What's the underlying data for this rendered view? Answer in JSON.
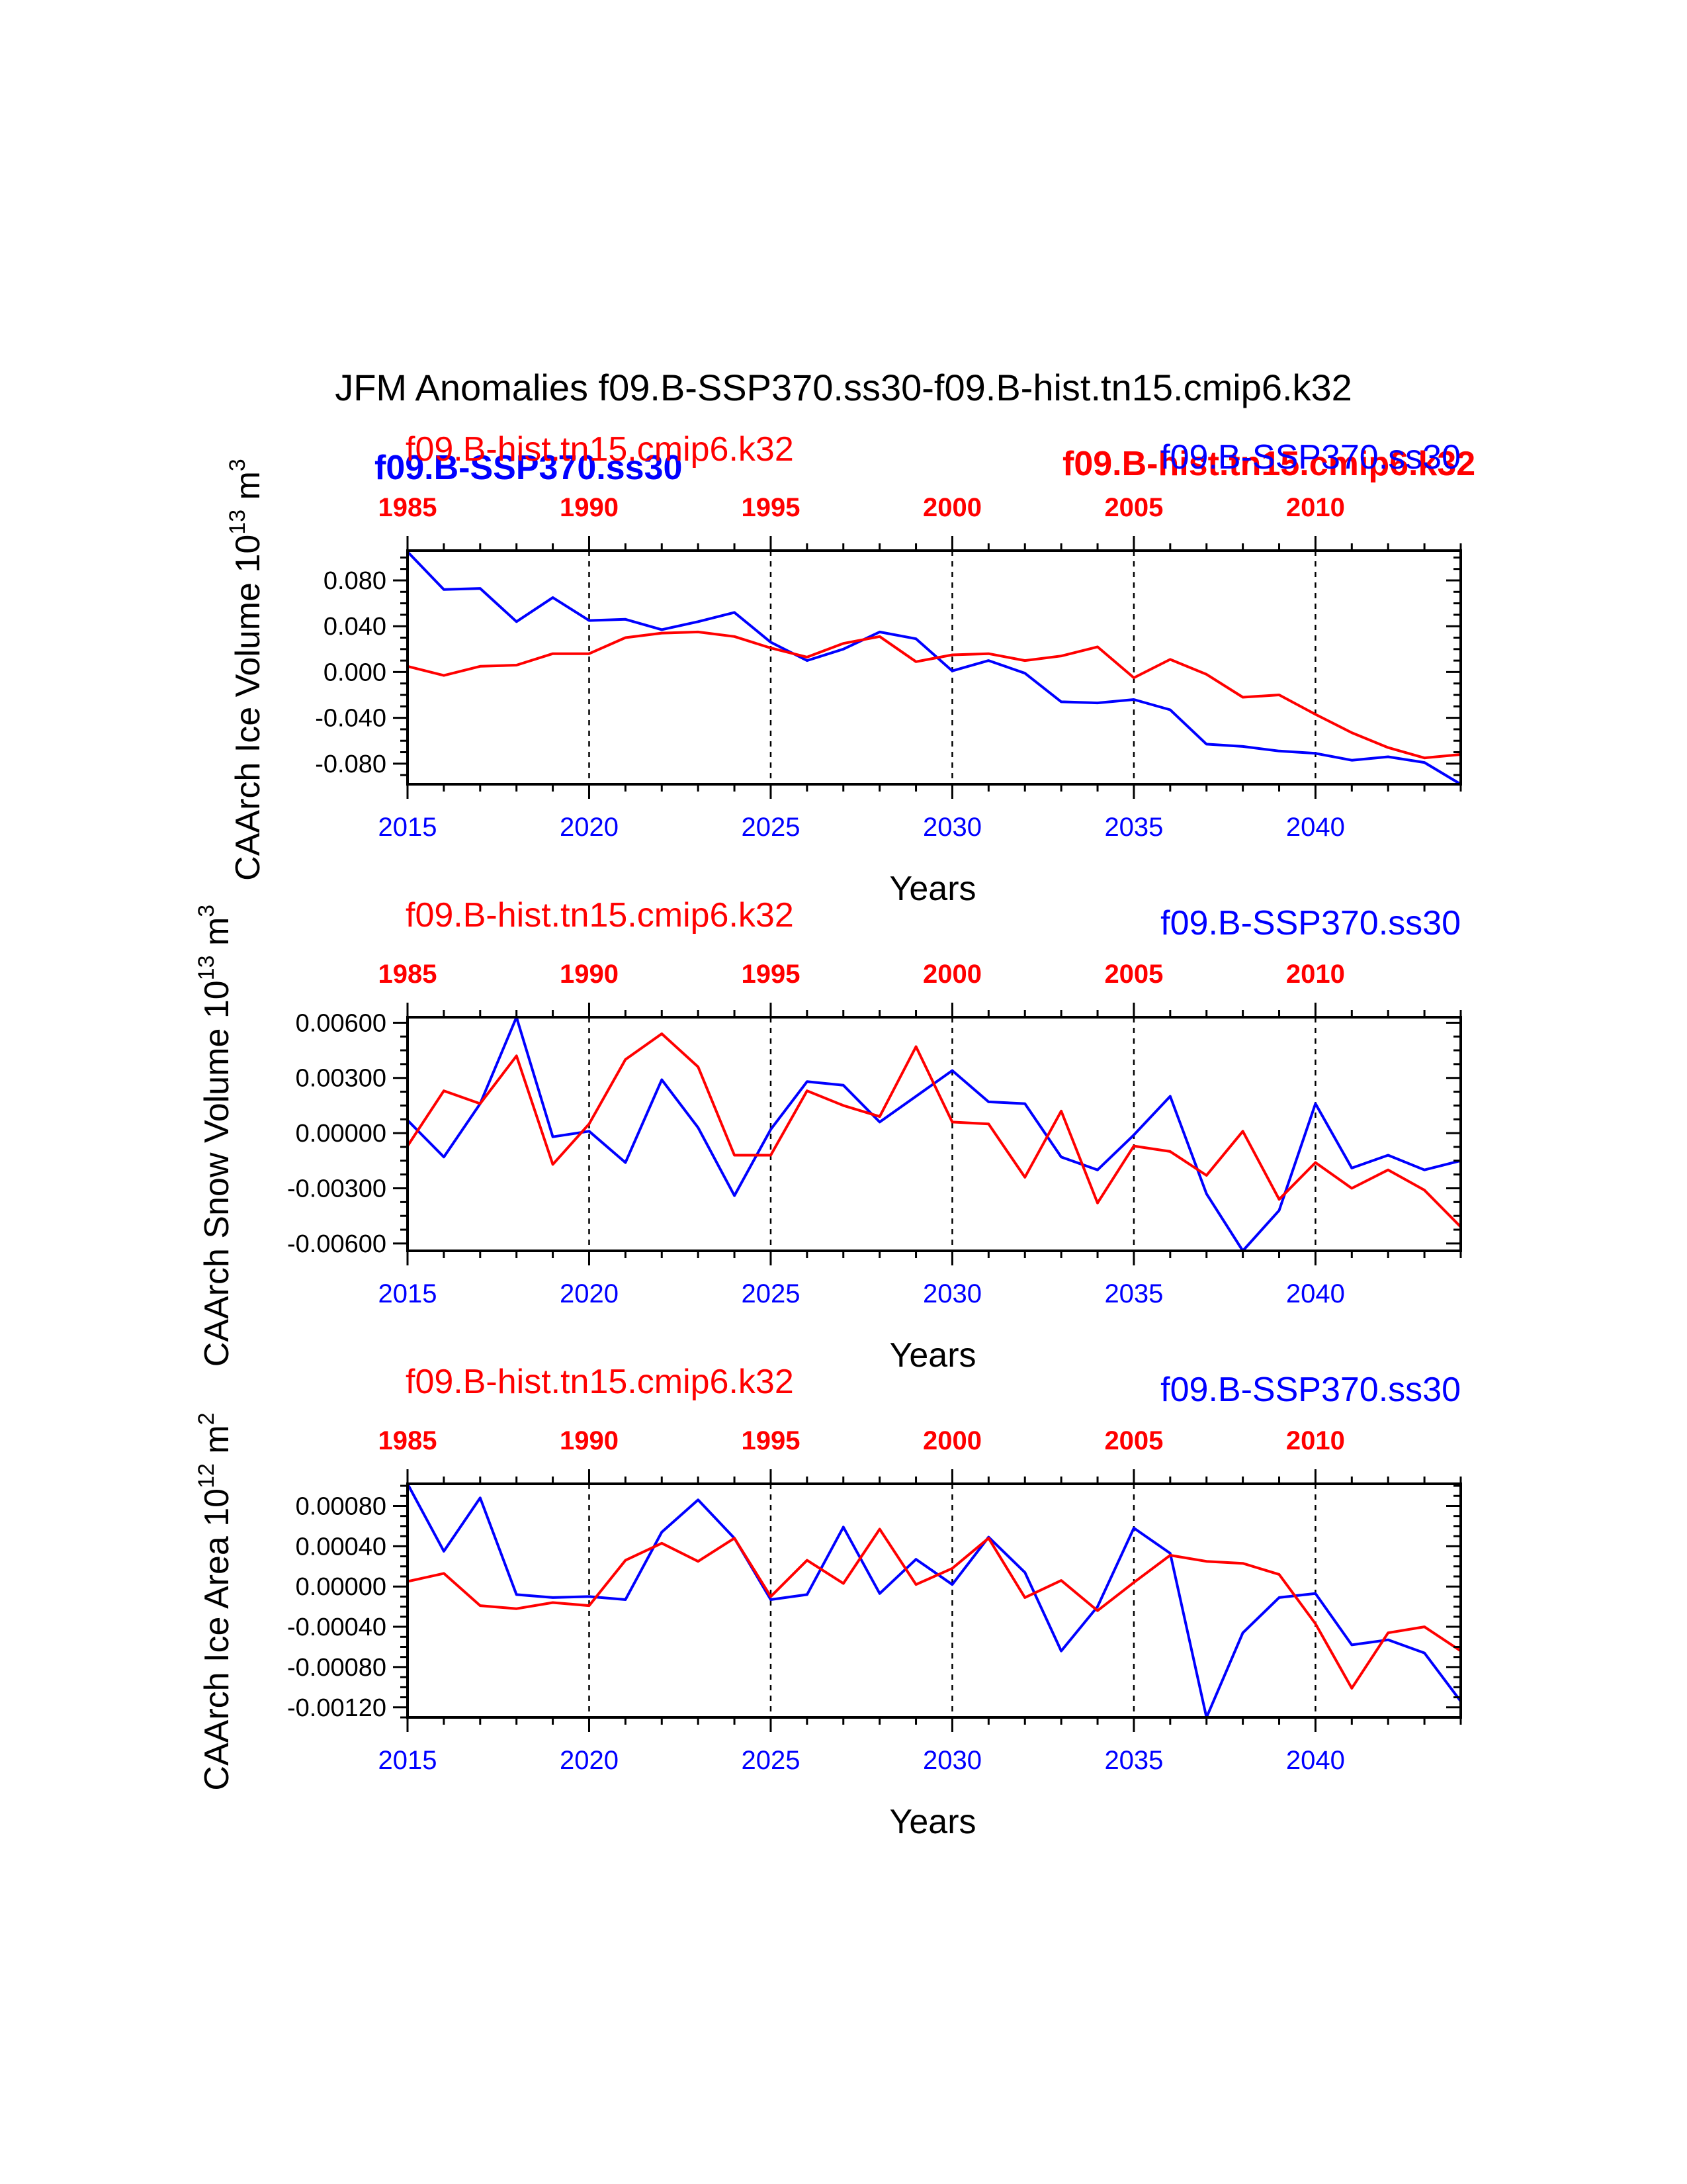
{
  "title": "JFM Anomalies f09.B-SSP370.ss30-f09.B-hist.tn15.cmip6.k32",
  "colors": {
    "ssp": "#0000ff",
    "hist": "#ff0000",
    "axis": "#000000"
  },
  "overlay_labels": {
    "bold_ssp": "f09.B-SSP370.ss30",
    "bold_hist": "f09.B-hist.tn15.cmip6.k32"
  },
  "chart_data": [
    {
      "type": "line",
      "name": "ice-volume",
      "title": "",
      "xlabel": "Years",
      "ylabel_parts": [
        "CAArch Ice Volume 10",
        "13",
        " m",
        "3"
      ],
      "run_label_hist": "f09.B-hist.tn15.cmip6.k32",
      "run_label_ssp": "f09.B-SSP370.ss30",
      "xlim": [
        2015,
        2044
      ],
      "top_xlim": [
        1985,
        2014
      ],
      "bottom_ticks": [
        "2015",
        "2020",
        "2025",
        "2030",
        "2035",
        "2040"
      ],
      "top_ticks": [
        "1985",
        "1990",
        "1995",
        "2000",
        "2005",
        "2010"
      ],
      "ylim": [
        -0.098,
        0.106
      ],
      "yticks": [
        0.08,
        0.04,
        0.0,
        -0.04,
        -0.08
      ],
      "ytick_labels": [
        "0.080",
        "0.040",
        "0.000",
        "-0.040",
        "-0.080"
      ],
      "minor_step": 0.01,
      "grid": "dashed vertical lines at 5-year ticks",
      "series": [
        {
          "name": "f09.B-SSP370.ss30",
          "color": "#0000ff",
          "x": [
            2015,
            2016,
            2017,
            2018,
            2019,
            2020,
            2021,
            2022,
            2023,
            2024,
            2025,
            2026,
            2027,
            2028,
            2029,
            2030,
            2031,
            2032,
            2033,
            2034,
            2035,
            2036,
            2037,
            2038,
            2039,
            2040,
            2041,
            2042,
            2043,
            2044
          ],
          "values": [
            0.105,
            0.072,
            0.073,
            0.044,
            0.065,
            0.045,
            0.046,
            0.037,
            0.044,
            0.052,
            0.026,
            0.01,
            0.02,
            0.035,
            0.029,
            0.001,
            0.01,
            -0.001,
            -0.026,
            -0.027,
            -0.024,
            -0.033,
            -0.063,
            -0.065,
            -0.069,
            -0.071,
            -0.077,
            -0.074,
            -0.079,
            -0.098
          ]
        },
        {
          "name": "f09.B-hist.tn15.cmip6.k32",
          "color": "#ff0000",
          "x": [
            2015,
            2016,
            2017,
            2018,
            2019,
            2020,
            2021,
            2022,
            2023,
            2024,
            2025,
            2026,
            2027,
            2028,
            2029,
            2030,
            2031,
            2032,
            2033,
            2034,
            2035,
            2036,
            2037,
            2038,
            2039,
            2040,
            2041,
            2042,
            2043,
            2044
          ],
          "values": [
            0.005,
            -0.003,
            0.005,
            0.006,
            0.016,
            0.016,
            0.03,
            0.034,
            0.035,
            0.031,
            0.021,
            0.013,
            0.025,
            0.031,
            0.009,
            0.015,
            0.016,
            0.01,
            0.014,
            0.022,
            -0.005,
            0.011,
            -0.002,
            -0.022,
            -0.02,
            -0.037,
            -0.053,
            -0.066,
            -0.075,
            -0.072
          ]
        }
      ]
    },
    {
      "type": "line",
      "name": "snow-volume",
      "title": "",
      "xlabel": "Years",
      "ylabel_parts": [
        "CAArch Snow Volume 10",
        "13",
        " m",
        "3"
      ],
      "run_label_hist": "f09.B-hist.tn15.cmip6.k32",
      "run_label_ssp": "f09.B-SSP370.ss30",
      "xlim": [
        2015,
        2044
      ],
      "top_xlim": [
        1985,
        2014
      ],
      "bottom_ticks": [
        "2015",
        "2020",
        "2025",
        "2030",
        "2035",
        "2040"
      ],
      "top_ticks": [
        "1985",
        "1990",
        "1995",
        "2000",
        "2005",
        "2010"
      ],
      "ylim": [
        -0.0064,
        0.0063
      ],
      "yticks": [
        0.006,
        0.003,
        0.0,
        -0.003,
        -0.006
      ],
      "ytick_labels": [
        "0.00600",
        "0.00300",
        "0.00000",
        "-0.00300",
        "-0.00600"
      ],
      "minor_step": 0.00075,
      "grid": "dashed vertical lines at 5-year ticks",
      "series": [
        {
          "name": "f09.B-SSP370.ss30",
          "color": "#0000ff",
          "x": [
            2015,
            2016,
            2017,
            2018,
            2019,
            2020,
            2021,
            2022,
            2023,
            2024,
            2025,
            2026,
            2027,
            2028,
            2029,
            2030,
            2031,
            2032,
            2033,
            2034,
            2035,
            2036,
            2037,
            2038,
            2039,
            2040,
            2041,
            2042,
            2043,
            2044
          ],
          "values": [
            0.0007,
            -0.0013,
            0.0016,
            0.0063,
            -0.0002,
            0.0001,
            -0.0016,
            0.0029,
            0.0003,
            -0.0034,
            0.0002,
            0.0028,
            0.0026,
            0.0006,
            0.002,
            0.0034,
            0.0017,
            0.0016,
            -0.0013,
            -0.002,
            -0.0001,
            0.002,
            -0.0033,
            -0.0064,
            -0.0042,
            0.0016,
            -0.0019,
            -0.0012,
            -0.002,
            -0.0015
          ]
        },
        {
          "name": "f09.B-hist.tn15.cmip6.k32",
          "color": "#ff0000",
          "x": [
            2015,
            2016,
            2017,
            2018,
            2019,
            2020,
            2021,
            2022,
            2023,
            2024,
            2025,
            2026,
            2027,
            2028,
            2029,
            2030,
            2031,
            2032,
            2033,
            2034,
            2035,
            2036,
            2037,
            2038,
            2039,
            2040,
            2041,
            2042,
            2043,
            2044
          ],
          "values": [
            -0.0007,
            0.0023,
            0.0016,
            0.0042,
            -0.0017,
            0.0005,
            0.004,
            0.0054,
            0.0036,
            -0.0012,
            -0.0012,
            0.0023,
            0.0015,
            0.0009,
            0.0047,
            0.0006,
            0.0005,
            -0.0024,
            0.0012,
            -0.0038,
            -0.0007,
            -0.001,
            -0.0023,
            0.0001,
            -0.0036,
            -0.0016,
            -0.003,
            -0.002,
            -0.0031,
            -0.0051
          ]
        }
      ]
    },
    {
      "type": "line",
      "name": "ice-area",
      "title": "",
      "xlabel": "Years",
      "ylabel_parts": [
        "CAArch Ice Area 10",
        "12",
        " m",
        "2"
      ],
      "run_label_hist": "f09.B-hist.tn15.cmip6.k32",
      "run_label_ssp": "f09.B-SSP370.ss30",
      "xlim": [
        2015,
        2044
      ],
      "top_xlim": [
        1985,
        2014
      ],
      "bottom_ticks": [
        "2015",
        "2020",
        "2025",
        "2030",
        "2035",
        "2040"
      ],
      "top_ticks": [
        "1985",
        "1990",
        "1995",
        "2000",
        "2005",
        "2010"
      ],
      "ylim": [
        -0.0013,
        0.00102
      ],
      "yticks": [
        0.0008,
        0.0004,
        0.0,
        -0.0004,
        -0.0008,
        -0.0012
      ],
      "ytick_labels": [
        "0.00080",
        "0.00040",
        "0.00000",
        "-0.00040",
        "-0.00080",
        "-0.00120"
      ],
      "minor_step": 0.0001,
      "grid": "dashed vertical lines at 5-year ticks",
      "series": [
        {
          "name": "f09.B-SSP370.ss30",
          "color": "#0000ff",
          "x": [
            2015,
            2016,
            2017,
            2018,
            2019,
            2020,
            2021,
            2022,
            2023,
            2024,
            2025,
            2026,
            2027,
            2028,
            2029,
            2030,
            2031,
            2032,
            2033,
            2034,
            2035,
            2036,
            2037,
            2038,
            2039,
            2040,
            2041,
            2042,
            2043,
            2044
          ],
          "values": [
            0.00102,
            0.00035,
            0.00088,
            -8e-05,
            -0.00011,
            -0.0001,
            -0.00013,
            0.00054,
            0.00086,
            0.00048,
            -0.00013,
            -8e-05,
            0.00059,
            -7e-05,
            0.00027,
            2e-05,
            0.00049,
            0.00014,
            -0.00064,
            -0.0002,
            0.00058,
            0.00033,
            -0.0013,
            -0.00046,
            -0.00011,
            -7e-05,
            -0.00058,
            -0.00053,
            -0.00066,
            -0.00114
          ]
        },
        {
          "name": "f09.B-hist.tn15.cmip6.k32",
          "color": "#ff0000",
          "x": [
            2015,
            2016,
            2017,
            2018,
            2019,
            2020,
            2021,
            2022,
            2023,
            2024,
            2025,
            2026,
            2027,
            2028,
            2029,
            2030,
            2031,
            2032,
            2033,
            2034,
            2035,
            2036,
            2037,
            2038,
            2039,
            2040,
            2041,
            2042,
            2043,
            2044
          ],
          "values": [
            5e-05,
            0.00013,
            -0.00019,
            -0.00022,
            -0.00016,
            -0.00019,
            0.00026,
            0.00043,
            0.00025,
            0.00048,
            -0.0001,
            0.00026,
            3e-05,
            0.00057,
            2e-05,
            0.00018,
            0.00048,
            -0.00011,
            6e-05,
            -0.00024,
            4e-05,
            0.00031,
            0.00025,
            0.00023,
            0.00012,
            -0.00037,
            -0.00101,
            -0.00046,
            -0.0004,
            -0.00064
          ]
        }
      ]
    }
  ]
}
